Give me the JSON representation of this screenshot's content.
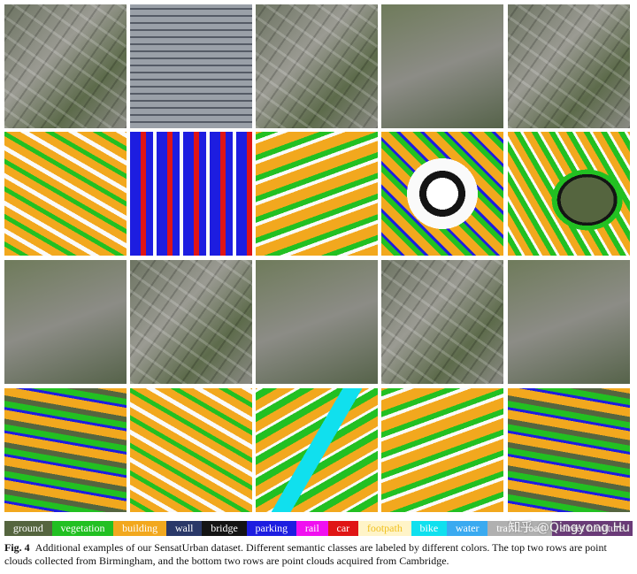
{
  "legend": {
    "items": [
      {
        "name": "ground",
        "color": "#55653f"
      },
      {
        "name": "vegetation",
        "color": "#22c022"
      },
      {
        "name": "building",
        "color": "#f2a81e"
      },
      {
        "name": "wall",
        "color": "#2a3868"
      },
      {
        "name": "bridge",
        "color": "#141414"
      },
      {
        "name": "parking",
        "color": "#1d1de0"
      },
      {
        "name": "rail",
        "color": "#f010f0"
      },
      {
        "name": "car",
        "color": "#e01515"
      },
      {
        "name": "footpath",
        "color": "#fff4c8"
      },
      {
        "name": "bike",
        "color": "#10e0ee"
      },
      {
        "name": "water",
        "color": "#3aaaf0"
      },
      {
        "name": "traffic road",
        "color": "#b0b0b0"
      },
      {
        "name": "street furniture",
        "color": "#6a3a78"
      }
    ]
  },
  "watermark": "知乎 @Qingyong Hu",
  "caption": {
    "label": "Fig. 4",
    "text": "Additional examples of our SensatUrban dataset. Different semantic classes are labeled by different colors. The top two rows are point clouds collected from Birmingham, and the bottom two rows are point clouds acquired from Cambridge."
  }
}
